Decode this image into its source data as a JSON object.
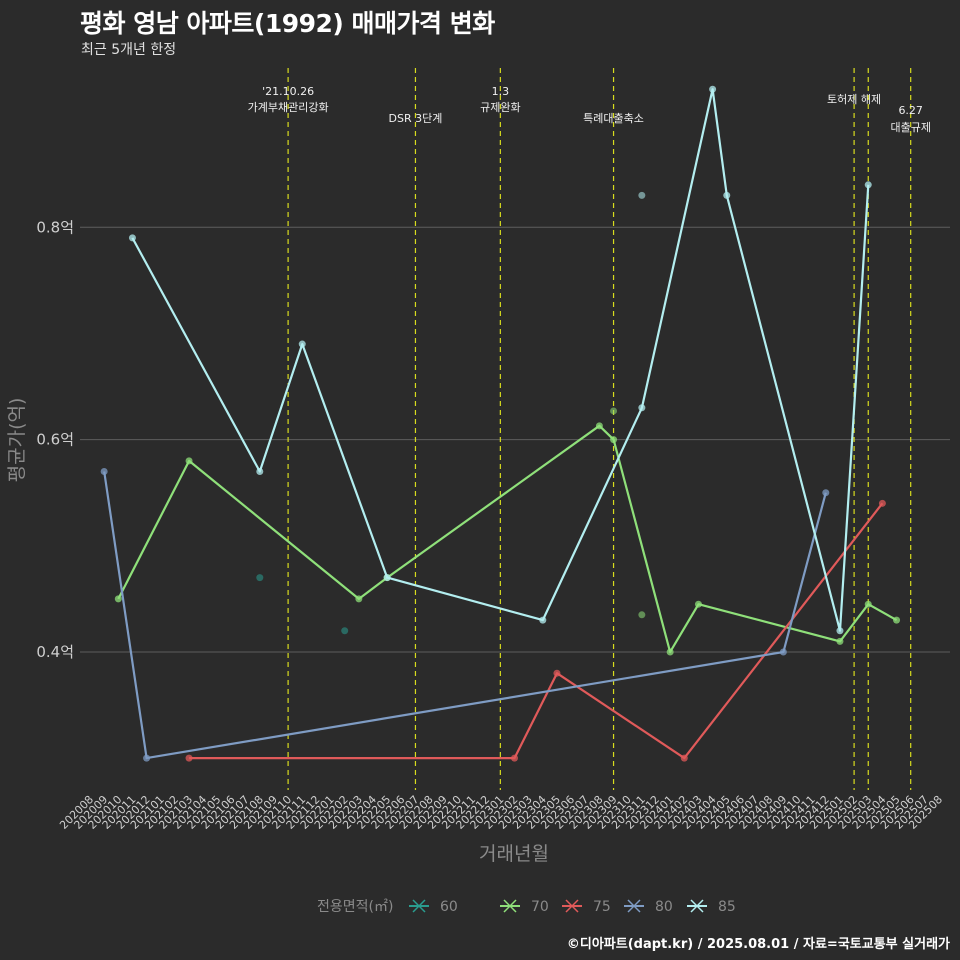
{
  "header": {
    "title": "평화 영남 아파트(1992) 매매가격 변화",
    "subtitle": "최근 5개년 한정"
  },
  "footer": {
    "credit": "©디아파트(dapt.kr) / 2025.08.01 / 자료=국토교통부 실거래가"
  },
  "chart_data": {
    "type": "line",
    "xlabel": "거래년월",
    "ylabel": "평균가(억)",
    "x_categories": [
      "202008",
      "202009",
      "202010",
      "202011",
      "202012",
      "202101",
      "202102",
      "202103",
      "202104",
      "202105",
      "202106",
      "202107",
      "202108",
      "202109",
      "202110",
      "202111",
      "202112",
      "202201",
      "202202",
      "202203",
      "202204",
      "202205",
      "202206",
      "202207",
      "202208",
      "202209",
      "202210",
      "202211",
      "202212",
      "202301",
      "202302",
      "202303",
      "202304",
      "202305",
      "202306",
      "202307",
      "202308",
      "202309",
      "202310",
      "202311",
      "202312",
      "202401",
      "202402",
      "202403",
      "202404",
      "202405",
      "202406",
      "202407",
      "202408",
      "202409",
      "202410",
      "202411",
      "202412",
      "202501",
      "202502",
      "202503",
      "202504",
      "202505",
      "202506",
      "202507",
      "202508"
    ],
    "ylim": [
      0.27,
      0.95
    ],
    "yticks": [
      0.4,
      0.6,
      0.8
    ],
    "ytick_labels": [
      "0.4억",
      "0.6억",
      "0.8억"
    ],
    "grid": true,
    "legend": {
      "title": "전용면적(㎡)",
      "position": "bottom"
    },
    "series": [
      {
        "name": "60",
        "color": "#2a9d8f",
        "points": [],
        "scatter": [
          [
            "202108",
            0.47
          ],
          [
            "202202",
            0.42
          ]
        ]
      },
      {
        "name": "70",
        "color": "#8fe07a",
        "points": [
          [
            "202010",
            0.45
          ],
          [
            "202103",
            0.58
          ],
          [
            "202203",
            0.45
          ],
          [
            "202205",
            0.47
          ],
          [
            "202308",
            0.613
          ],
          [
            "202309",
            0.6
          ],
          [
            "202401",
            0.4
          ],
          [
            "202403",
            0.445
          ],
          [
            "202501",
            0.41
          ],
          [
            "202503",
            0.445
          ],
          [
            "202505",
            0.43
          ]
        ],
        "scatter": [
          [
            "202309",
            0.627
          ],
          [
            "202311",
            0.435
          ]
        ]
      },
      {
        "name": "75",
        "color": "#e05a5a",
        "points": [
          [
            "202103",
            0.3
          ],
          [
            "202302",
            0.3
          ],
          [
            "202305",
            0.38
          ],
          [
            "202402",
            0.3
          ],
          [
            "202504",
            0.54
          ]
        ],
        "scatter": []
      },
      {
        "name": "80",
        "color": "#7f9cc4",
        "points": [
          [
            "202009",
            0.57
          ],
          [
            "202012",
            0.3
          ],
          [
            "202409",
            0.4
          ],
          [
            "202412",
            0.55
          ]
        ],
        "scatter": []
      },
      {
        "name": "85",
        "color": "#b3eef0",
        "points": [
          [
            "202011",
            0.79
          ],
          [
            "202108",
            0.57
          ],
          [
            "202111",
            0.69
          ],
          [
            "202205",
            0.47
          ],
          [
            "202304",
            0.43
          ],
          [
            "202311",
            0.63
          ],
          [
            "202404",
            0.93
          ],
          [
            "202405",
            0.83
          ],
          [
            "202501",
            0.42
          ],
          [
            "202503",
            0.84
          ]
        ],
        "scatter": [
          [
            "202311",
            0.83
          ]
        ]
      }
    ],
    "events": [
      {
        "x": "202110",
        "label": [
          "'21.10.26",
          "가계부채관리강화"
        ]
      },
      {
        "x": "202207",
        "label": [
          "DSR 3단계"
        ]
      },
      {
        "x": "202301",
        "label": [
          "1.3",
          "규제완화"
        ]
      },
      {
        "x": "202309",
        "label": [
          "특례대출축소"
        ]
      },
      {
        "x": "202502",
        "label": [
          "토허제 해제"
        ]
      },
      {
        "x": "202503",
        "label": []
      },
      {
        "x": "202506",
        "label": [
          "6.27",
          "대출규제"
        ]
      }
    ]
  }
}
